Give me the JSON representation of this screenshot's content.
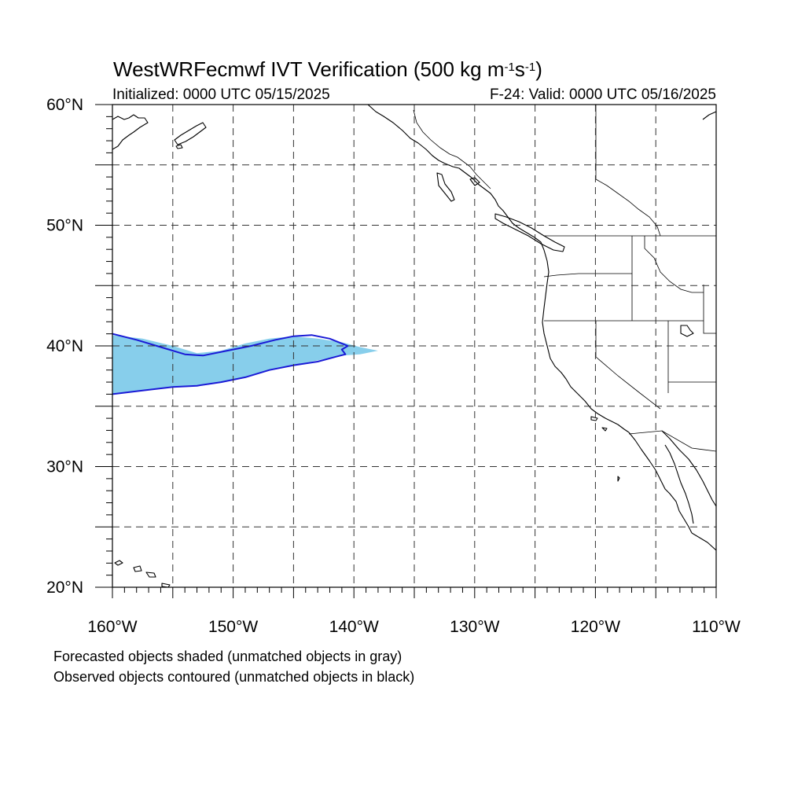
{
  "header": {
    "title_main": "WestWRFecmwf IVT Verification (500 kg m",
    "title_sup1": "-1",
    "title_mid": "s",
    "title_sup2": "-1",
    "title_end": ")",
    "initialized": "Initialized: 0000 UTC 05/15/2025",
    "valid": "F-24: Valid: 0000 UTC 05/16/2025"
  },
  "map": {
    "projection": "cylindrical equidistant",
    "lon_range": [
      -160,
      -110
    ],
    "lat_range": [
      20,
      60
    ],
    "lon_ticks": [
      {
        "value": -160,
        "label": "160°W"
      },
      {
        "value": -150,
        "label": "150°W"
      },
      {
        "value": -140,
        "label": "140°W"
      },
      {
        "value": -130,
        "label": "130°W"
      },
      {
        "value": -120,
        "label": "120°W"
      },
      {
        "value": -110,
        "label": "110°W"
      }
    ],
    "lat_ticks": [
      {
        "value": 60,
        "label": "60°N"
      },
      {
        "value": 50,
        "label": "50°N"
      },
      {
        "value": 40,
        "label": "40°N"
      },
      {
        "value": 30,
        "label": "30°N"
      },
      {
        "value": 20,
        "label": "20°N"
      }
    ],
    "grid_spacing_deg": 5,
    "colors": {
      "forecast_fill": "#87ceeb",
      "observed_contour": "#1a1ad6",
      "coast": "#000000",
      "grid": "#444444"
    },
    "forecast_object": [
      [
        -160,
        40.9
      ],
      [
        -157.5,
        40.6
      ],
      [
        -155,
        40.0
      ],
      [
        -153,
        39.4
      ],
      [
        -151,
        39.6
      ],
      [
        -149,
        40.2
      ],
      [
        -147,
        40.6
      ],
      [
        -145,
        40.8
      ],
      [
        -143,
        40.6
      ],
      [
        -141,
        40.3
      ],
      [
        -139.5,
        39.9
      ],
      [
        -138,
        39.6
      ],
      [
        -139.5,
        39.3
      ],
      [
        -141,
        39.2
      ],
      [
        -143,
        38.8
      ],
      [
        -145,
        38.4
      ],
      [
        -147,
        38.0
      ],
      [
        -149,
        37.4
      ],
      [
        -151,
        37.0
      ],
      [
        -153,
        36.7
      ],
      [
        -155,
        36.6
      ],
      [
        -157.5,
        36.3
      ],
      [
        -160,
        36.0
      ]
    ],
    "observed_object": [
      [
        -160,
        41.0
      ],
      [
        -158,
        40.5
      ],
      [
        -156,
        39.9
      ],
      [
        -154,
        39.3
      ],
      [
        -152.5,
        39.2
      ],
      [
        -150.5,
        39.6
      ],
      [
        -148.5,
        40.0
      ],
      [
        -146.5,
        40.5
      ],
      [
        -145,
        40.8
      ],
      [
        -143.5,
        40.9
      ],
      [
        -142,
        40.6
      ],
      [
        -141,
        40.2
      ],
      [
        -140.5,
        40.0
      ],
      [
        -141,
        39.7
      ],
      [
        -140.7,
        39.3
      ],
      [
        -141.5,
        39.1
      ],
      [
        -143,
        38.7
      ],
      [
        -145,
        38.4
      ],
      [
        -147,
        38.0
      ],
      [
        -149,
        37.4
      ],
      [
        -151,
        37.0
      ],
      [
        -153,
        36.7
      ],
      [
        -155,
        36.6
      ],
      [
        -157.5,
        36.3
      ],
      [
        -160,
        36.0
      ]
    ]
  },
  "captions": {
    "forecast": "Forecasted objects shaded (unmatched objects in gray)",
    "observed": "Observed objects contoured (unmatched objects in black)"
  }
}
